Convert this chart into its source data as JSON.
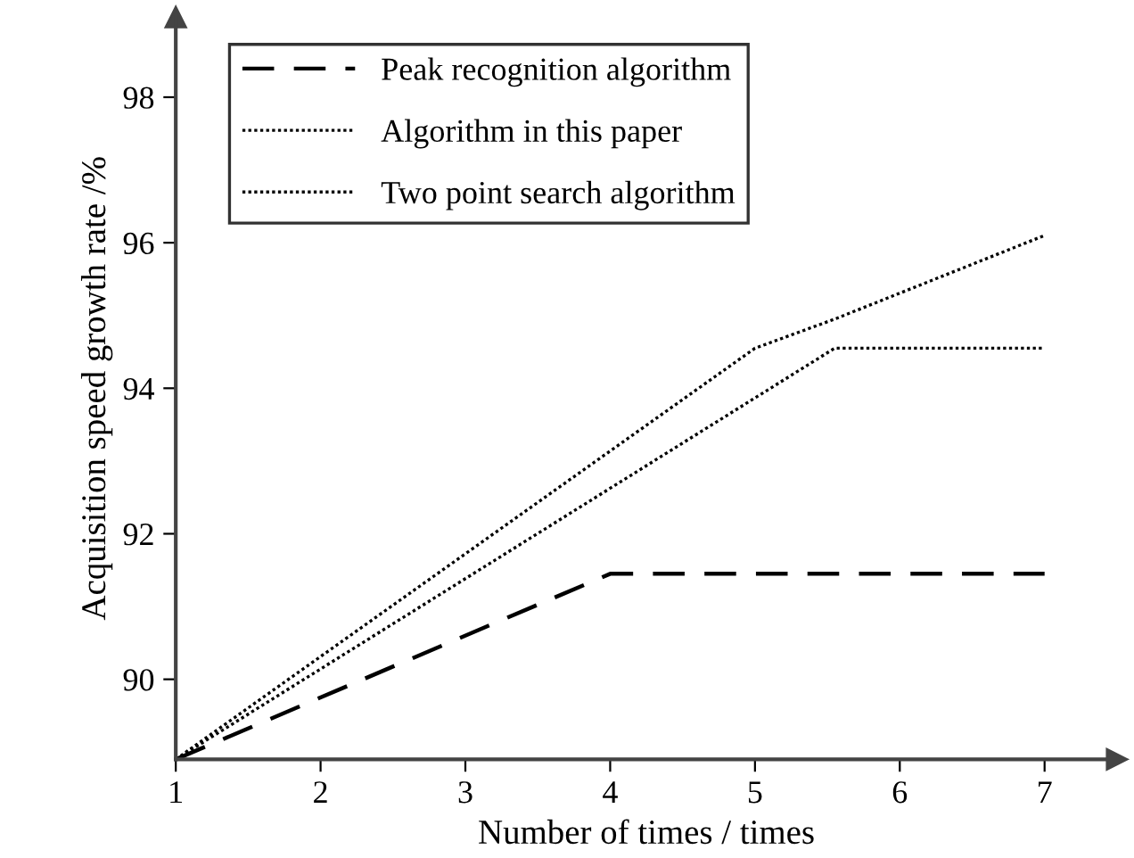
{
  "chart_data": {
    "type": "line",
    "xlabel": "Number of times / times",
    "ylabel": "Acquisition speed growth rate /%",
    "xlim": [
      1,
      7.5
    ],
    "ylim": [
      88.9,
      99.1
    ],
    "xticks": [
      1,
      2,
      3,
      4,
      5,
      6,
      7
    ],
    "yticks": [
      90,
      92,
      94,
      96,
      98
    ],
    "grid": false,
    "legend": "upper left",
    "marker": "none",
    "series": [
      {
        "name": "Peak recognition algorithm",
        "color": "#000000",
        "line_style": "dashed",
        "x": [
          1,
          4,
          7
        ],
        "values": [
          88.9,
          91.45,
          91.45
        ]
      },
      {
        "name": "Algorithm in this paper",
        "color": "#000000",
        "line_style": "dotted",
        "x": [
          1,
          5,
          5.55,
          7
        ],
        "values": [
          88.9,
          94.55,
          94.95,
          96.1
        ]
      },
      {
        "name": "Two point search algorithm",
        "color": "#000000",
        "line_style": "dotted",
        "x": [
          1,
          5.55,
          7
        ],
        "values": [
          88.9,
          94.55,
          94.55
        ]
      }
    ]
  }
}
